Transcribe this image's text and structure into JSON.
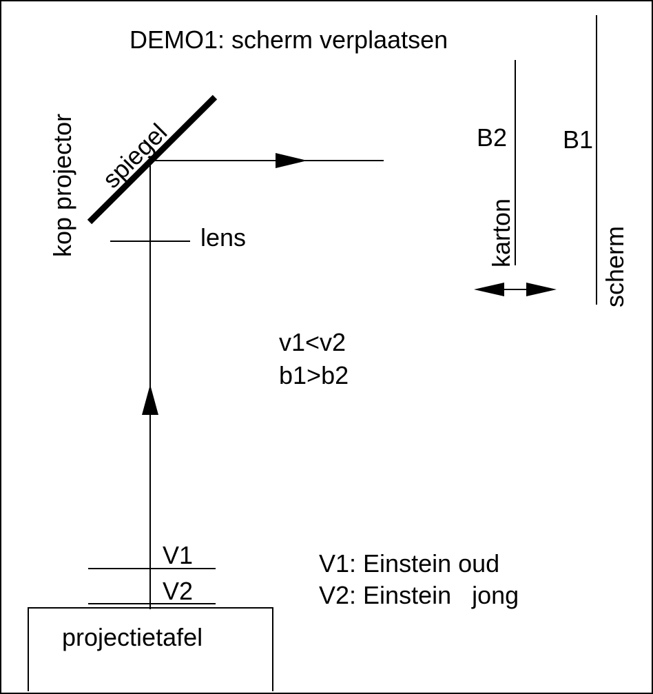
{
  "title": "DEMO1: scherm verplaatsen",
  "labels": {
    "kop_projector": "kop projector",
    "spiegel": "spiegel",
    "lens": "lens",
    "b2": "B2",
    "b1": "B1",
    "karton": "karton",
    "scherm": "scherm",
    "relation_v": "v1<v2",
    "relation_b": "b1>b2",
    "v1": "V1",
    "v2": "V2",
    "legend_v1": "V1: Einstein oud",
    "legend_v2": "V2: Einstein   jong",
    "projectietafel": "projectietafel"
  },
  "colors": {
    "ink": "#000000",
    "background": "#ffffff"
  }
}
